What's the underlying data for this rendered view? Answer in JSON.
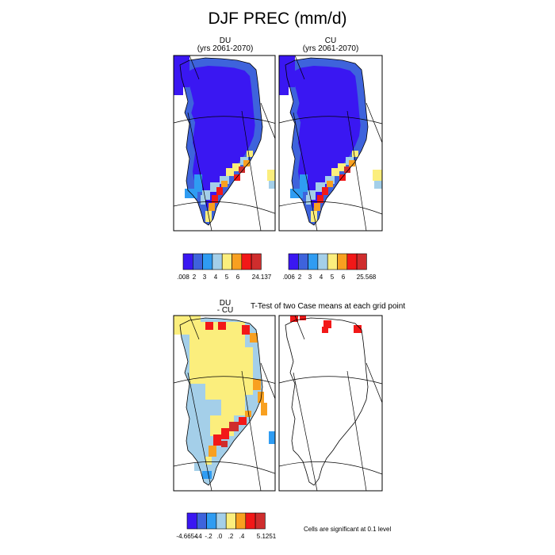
{
  "figure": {
    "title": "DJF PREC (mm/d)",
    "significance_note": "Cells are significant at 0.1 level",
    "ttest_title": "T-Test of two Case means at each grid point"
  },
  "panels": [
    {
      "id": "DU",
      "label": "DU",
      "sublabel": "(yrs 2061-2070)"
    },
    {
      "id": "CU",
      "label": "CU",
      "sublabel": "(yrs 2061-2070)"
    },
    {
      "id": "DIFF",
      "label": "DU",
      "sublabel": "- CU"
    }
  ],
  "colorbars": [
    {
      "id": "DU",
      "colors": [
        "#3a17f2",
        "#3e63dc",
        "#2f9cf2",
        "#a4cfe9",
        "#fbee7d",
        "#f8a020",
        "#f21818",
        "#cf2d2d"
      ],
      "labels": [
        ".008",
        "2",
        "3",
        "4",
        "5",
        "6",
        "24.137"
      ]
    },
    {
      "id": "CU",
      "colors": [
        "#3a17f2",
        "#3e63dc",
        "#2f9cf2",
        "#a4cfe9",
        "#fbee7d",
        "#f8a020",
        "#f21818",
        "#cf2d2d"
      ],
      "labels": [
        ".006",
        "2",
        "3",
        "4",
        "5",
        "6",
        "25.568"
      ]
    },
    {
      "id": "DIFF",
      "colors": [
        "#3a17f2",
        "#3e63dc",
        "#2f9cf2",
        "#a4cfe9",
        "#fbee7d",
        "#f8a020",
        "#f21818",
        "#cf2d2d"
      ],
      "labels": [
        "-4.6654",
        "-.4",
        "-.2",
        ".0",
        ".2",
        ".4",
        "5.1251"
      ]
    }
  ],
  "chart_data": [
    {
      "type": "heatmap",
      "title": "DU (yrs 2061-2070)",
      "region": "Greenland",
      "season": "DJF",
      "variable": "PREC",
      "units": "mm/d",
      "levels": [
        2,
        3,
        4,
        5,
        6
      ],
      "min": 0.008,
      "max": 24.137,
      "pattern": "interior and north mostly below 2 (dark blue); coastal rim 2-4; south-east coast maxima above 6"
    },
    {
      "type": "heatmap",
      "title": "CU (yrs 2061-2070)",
      "region": "Greenland",
      "season": "DJF",
      "variable": "PREC",
      "units": "mm/d",
      "levels": [
        2,
        3,
        4,
        5,
        6
      ],
      "min": 0.006,
      "max": 25.568,
      "pattern": "interior and north mostly below 2 (dark blue); coastal rim 2-4; south-east coast maxima above 6"
    },
    {
      "type": "heatmap",
      "title": "DU - CU",
      "region": "Greenland",
      "units": "mm/d",
      "levels": [
        -0.4,
        -0.2,
        0.0,
        0.2,
        0.4
      ],
      "min": -4.6654,
      "max": 5.1251,
      "pattern": "interior 0 to 0.2 (yellow); west coast -0.2 to 0 (light blue); south-east coast above 0.4 (red)"
    },
    {
      "type": "heatmap",
      "title": "T-Test of two Case means at each grid point",
      "region": "Greenland",
      "pattern": "few significant cells along the northern coast (red)"
    }
  ]
}
